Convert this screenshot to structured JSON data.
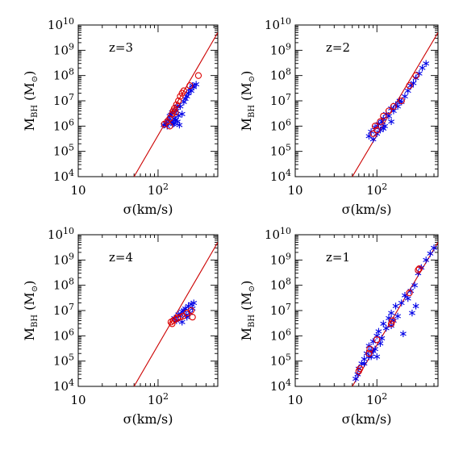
{
  "chart_data": [
    {
      "type": "scatter",
      "panel_label": "z=3",
      "xlabel": "σ(km/s)",
      "ylabel": "M_BH (M_⊙)",
      "x_scale": "log",
      "y_scale": "log",
      "xlim": [
        10,
        560
      ],
      "ylim": [
        10000,
        10000000000
      ],
      "x_tick_labels": [
        "10",
        "10²"
      ],
      "y_tick_labels": [
        "10⁴",
        "10⁵",
        "10⁶",
        "10⁷",
        "10⁸",
        "10⁹",
        "10¹⁰"
      ],
      "fit_line": [
        [
          50,
          10000
        ],
        [
          560,
          5000000000
        ]
      ],
      "series": [
        {
          "marker": "star",
          "color": "#0000e6",
          "points": [
            [
              118,
              1100000
            ],
            [
              125,
              1300000
            ],
            [
              130,
              1000000
            ],
            [
              135,
              1700000
            ],
            [
              140,
              2500000
            ],
            [
              145,
              1500000
            ],
            [
              150,
              3500000
            ],
            [
              155,
              1200000
            ],
            [
              160,
              2000000
            ],
            [
              165,
              1800000
            ],
            [
              170,
              4000000
            ],
            [
              175,
              1500000
            ],
            [
              180,
              2600000
            ],
            [
              185,
              1100000
            ],
            [
              190,
              6000000
            ],
            [
              200,
              3000000
            ],
            [
              210,
              9000000
            ],
            [
              220,
              12000000
            ],
            [
              230,
              15000000
            ],
            [
              240,
              20000000
            ],
            [
              250,
              30000000
            ],
            [
              260,
              25000000
            ],
            [
              270,
              40000000
            ],
            [
              280,
              35000000
            ],
            [
              300,
              45000000
            ],
            [
              160,
              1300000
            ],
            [
              145,
              2800000
            ],
            [
              175,
              6000000
            ]
          ]
        },
        {
          "marker": "circle",
          "color": "#dd0000",
          "points": [
            [
              120,
              1200000
            ],
            [
              130,
              1500000
            ],
            [
              140,
              2000000
            ],
            [
              150,
              3000000
            ],
            [
              155,
              4000000
            ],
            [
              160,
              5000000
            ],
            [
              170,
              7000000
            ],
            [
              180,
              10000000
            ],
            [
              190,
              15000000
            ],
            [
              200,
              20000000
            ],
            [
              210,
              25000000
            ],
            [
              250,
              40000000
            ],
            [
              320,
              100000000
            ],
            [
              140,
              1000000
            ],
            [
              165,
              3500000
            ]
          ]
        }
      ]
    },
    {
      "type": "scatter",
      "panel_label": "z=2",
      "xlabel": "σ(km/s)",
      "ylabel": "M_BH (M_⊙)",
      "x_scale": "log",
      "y_scale": "log",
      "xlim": [
        10,
        560
      ],
      "ylim": [
        10000,
        10000000000
      ],
      "x_tick_labels": [
        "10",
        "10²"
      ],
      "y_tick_labels": [
        "10⁴",
        "10⁵",
        "10⁶",
        "10⁷",
        "10⁸",
        "10⁹",
        "10¹⁰"
      ],
      "fit_line": [
        [
          50,
          10000
        ],
        [
          560,
          5000000000
        ]
      ],
      "series": [
        {
          "marker": "star",
          "color": "#0000e6",
          "points": [
            [
              80,
              400000
            ],
            [
              85,
              600000
            ],
            [
              90,
              300000
            ],
            [
              95,
              900000
            ],
            [
              100,
              500000
            ],
            [
              105,
              1200000
            ],
            [
              110,
              700000
            ],
            [
              115,
              1500000
            ],
            [
              120,
              2000000
            ],
            [
              125,
              1000000
            ],
            [
              130,
              3000000
            ],
            [
              140,
              2500000
            ],
            [
              150,
              5000000
            ],
            [
              160,
              4000000
            ],
            [
              170,
              7000000
            ],
            [
              180,
              6000000
            ],
            [
              190,
              10000000
            ],
            [
              200,
              9000000
            ],
            [
              220,
              15000000
            ],
            [
              240,
              25000000
            ],
            [
              260,
              40000000
            ],
            [
              280,
              50000000
            ],
            [
              300,
              80000000
            ],
            [
              330,
              120000000
            ],
            [
              360,
              200000000
            ],
            [
              400,
              300000000
            ],
            [
              120,
              800000
            ],
            [
              150,
              1500000
            ]
          ]
        },
        {
          "marker": "circle",
          "color": "#dd0000",
          "points": [
            [
              90,
              500000
            ],
            [
              100,
              700000
            ],
            [
              110,
              1500000
            ],
            [
              120,
              2500000
            ],
            [
              140,
              4000000
            ],
            [
              160,
              6000000
            ],
            [
              200,
              10000000
            ],
            [
              250,
              40000000
            ],
            [
              300,
              100000000
            ],
            [
              95,
              1000000
            ]
          ]
        }
      ]
    },
    {
      "type": "scatter",
      "panel_label": "z=4",
      "xlabel": "σ(km/s)",
      "ylabel": "M_BH (M_⊙)",
      "x_scale": "log",
      "y_scale": "log",
      "xlim": [
        10,
        560
      ],
      "ylim": [
        10000,
        10000000000
      ],
      "x_tick_labels": [
        "10",
        "10²"
      ],
      "y_tick_labels": [
        "10⁴",
        "10⁵",
        "10⁶",
        "10⁷",
        "10⁸",
        "10⁹",
        "10¹⁰"
      ],
      "fit_line": [
        [
          50,
          10000
        ],
        [
          560,
          5000000000
        ]
      ],
      "series": [
        {
          "marker": "star",
          "color": "#0000e6",
          "points": [
            [
              160,
              5000000
            ],
            [
              170,
              4000000
            ],
            [
              180,
              7000000
            ],
            [
              190,
              6000000
            ],
            [
              200,
              9000000
            ],
            [
              210,
              10000000
            ],
            [
              220,
              12000000
            ],
            [
              230,
              5500000
            ],
            [
              240,
              15000000
            ],
            [
              250,
              8000000
            ],
            [
              260,
              18000000
            ],
            [
              270,
              12000000
            ],
            [
              280,
              20000000
            ],
            [
              200,
              3500000
            ],
            [
              225,
              6500000
            ]
          ]
        },
        {
          "marker": "circle",
          "color": "#dd0000",
          "points": [
            [
              145,
              3500000
            ],
            [
              155,
              4000000
            ],
            [
              165,
              4500000
            ],
            [
              175,
              5000000
            ],
            [
              190,
              5500000
            ],
            [
              205,
              6000000
            ],
            [
              230,
              8000000
            ],
            [
              260,
              10000000
            ],
            [
              270,
              5500000
            ],
            [
              150,
              3000000
            ]
          ]
        }
      ]
    },
    {
      "type": "scatter",
      "panel_label": "z=1",
      "xlabel": "σ(km/s)",
      "ylabel": "M_BH (M_⊙)",
      "x_scale": "log",
      "y_scale": "log",
      "xlim": [
        10,
        560
      ],
      "ylim": [
        10000,
        10000000000
      ],
      "x_tick_labels": [
        "10",
        "10²"
      ],
      "y_tick_labels": [
        "10⁴",
        "10⁵",
        "10⁶",
        "10⁷",
        "10⁸",
        "10⁹",
        "10¹⁰"
      ],
      "fit_line": [
        [
          50,
          10000
        ],
        [
          560,
          5000000000
        ]
      ],
      "series": [
        {
          "marker": "star",
          "color": "#0000e6",
          "points": [
            [
              55,
              20000
            ],
            [
              58,
              30000
            ],
            [
              60,
              50000
            ],
            [
              65,
              80000
            ],
            [
              70,
              120000
            ],
            [
              75,
              200000
            ],
            [
              80,
              400000
            ],
            [
              85,
              150000
            ],
            [
              90,
              600000
            ],
            [
              95,
              300000
            ],
            [
              100,
              1000000
            ],
            [
              105,
              1500000
            ],
            [
              110,
              500000
            ],
            [
              120,
              3000000
            ],
            [
              130,
              2000000
            ],
            [
              140,
              5000000
            ],
            [
              150,
              8000000
            ],
            [
              160,
              4000000
            ],
            [
              170,
              15000000
            ],
            [
              180,
              6000000
            ],
            [
              200,
              20000000
            ],
            [
              220,
              40000000
            ],
            [
              240,
              30000000
            ],
            [
              260,
              60000000
            ],
            [
              290,
              100000000
            ],
            [
              320,
              300000000
            ],
            [
              350,
              500000000
            ],
            [
              400,
              1000000000
            ],
            [
              450,
              1800000000
            ],
            [
              500,
              3000000000
            ],
            [
              90,
              250000
            ],
            [
              100,
              150000
            ],
            [
              70,
              80000
            ],
            [
              80,
              150000
            ],
            [
              85,
              250000
            ],
            [
              150,
              2500000
            ],
            [
              210,
              1200000
            ],
            [
              115,
              800000
            ],
            [
              270,
              8000000
            ],
            [
              300,
              15000000
            ]
          ]
        },
        {
          "marker": "circle",
          "color": "#dd0000",
          "points": [
            [
              60,
              40000
            ],
            [
              62,
              50000
            ],
            [
              80,
              200000
            ],
            [
              82,
              300000
            ],
            [
              100,
              700000
            ],
            [
              150,
              3000000
            ],
            [
              155,
              4000000
            ],
            [
              250,
              50000000
            ],
            [
              320,
              400000000
            ],
            [
              330,
              450000000
            ]
          ]
        }
      ]
    }
  ]
}
